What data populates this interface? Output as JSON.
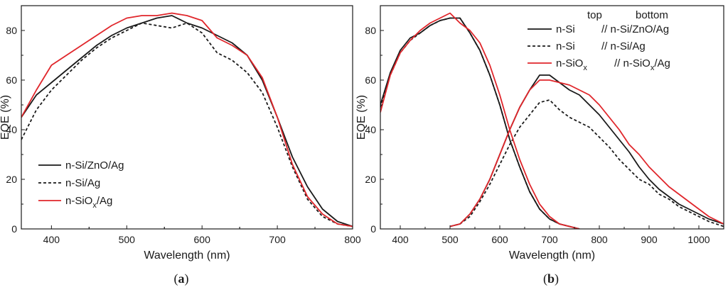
{
  "colors": {
    "black": "#1a1a1a",
    "red": "#e0262b"
  },
  "chart_data": [
    {
      "type": "line",
      "panel": "a",
      "panel_label": {
        "open": "(",
        "letter": "a",
        "close": ")"
      },
      "xlabel": "Wavelength (nm)",
      "ylabel": "EQE (%)",
      "xlim": [
        360,
        800
      ],
      "ylim": [
        0,
        90
      ],
      "xticks": [
        400,
        500,
        600,
        700,
        800
      ],
      "yticks": [
        0,
        20,
        40,
        60,
        80
      ],
      "legend_position": "bottom-left",
      "series": [
        {
          "name": "n-Si/ZnO/Ag",
          "label_base": "n-Si/ZnO/Ag",
          "color": "#1a1a1a",
          "dash": "solid",
          "x": [
            360,
            380,
            400,
            420,
            440,
            460,
            480,
            500,
            520,
            540,
            560,
            580,
            600,
            620,
            640,
            660,
            680,
            700,
            720,
            740,
            760,
            780,
            800
          ],
          "y": [
            45,
            54,
            59,
            64,
            69,
            74,
            78,
            81,
            83,
            85,
            86,
            83,
            81,
            78,
            75,
            70,
            60,
            45,
            29,
            17,
            8,
            3,
            1
          ]
        },
        {
          "name": "n-Si/Ag",
          "label_base": "n-Si/Ag",
          "color": "#1a1a1a",
          "dash": "dashed",
          "x": [
            360,
            380,
            400,
            420,
            440,
            460,
            480,
            500,
            520,
            540,
            560,
            580,
            600,
            620,
            640,
            660,
            680,
            700,
            720,
            740,
            760,
            780,
            800
          ],
          "y": [
            36,
            48,
            56,
            62,
            68,
            73,
            77,
            80,
            83,
            82,
            81,
            83,
            79,
            71,
            68,
            63,
            55,
            41,
            25,
            12,
            5,
            2,
            1
          ]
        },
        {
          "name": "n-SiOx/Ag",
          "label_base": "n-SiO",
          "label_sub": "x",
          "label_tail": "/Ag",
          "color": "#e0262b",
          "dash": "solid",
          "x": [
            360,
            380,
            400,
            420,
            440,
            460,
            480,
            500,
            520,
            540,
            560,
            580,
            600,
            620,
            640,
            660,
            680,
            700,
            720,
            740,
            760,
            780,
            800
          ],
          "y": [
            45,
            56,
            66,
            70,
            74,
            78,
            82,
            85,
            86,
            86,
            87,
            86,
            84,
            77,
            74,
            70,
            61,
            45,
            26,
            13,
            6,
            2,
            1
          ]
        }
      ]
    },
    {
      "type": "line",
      "panel": "b",
      "panel_label": {
        "open": "(",
        "letter": "b",
        "close": ")"
      },
      "xlabel": "Wavelength (nm)",
      "ylabel": "EQE (%)",
      "xlim": [
        360,
        1050
      ],
      "ylim": [
        0,
        90
      ],
      "xticks": [
        400,
        500,
        600,
        700,
        800,
        900,
        1000
      ],
      "yticks": [
        0,
        20,
        40,
        60,
        80
      ],
      "legend_position": "top-right",
      "legend_header": {
        "top": "top",
        "bottom": "bottom"
      },
      "series": [
        {
          "name": "n-Si // n-Si/ZnO/Ag (top)",
          "legend": true,
          "label_top": "n-Si",
          "label_bottom": "// n-Si/ZnO/Ag",
          "color": "#1a1a1a",
          "dash": "solid",
          "x": [
            360,
            380,
            400,
            420,
            440,
            460,
            480,
            500,
            520,
            540,
            560,
            580,
            600,
            620,
            640,
            660,
            680,
            700,
            720,
            740,
            760
          ],
          "y": [
            50,
            63,
            72,
            77,
            79,
            82,
            84,
            85,
            85,
            79,
            72,
            62,
            50,
            36,
            25,
            15,
            8,
            4,
            2,
            1,
            0
          ]
        },
        {
          "name": "n-Si // n-Si/ZnO/Ag (bottom)",
          "legend": false,
          "color": "#1a1a1a",
          "dash": "solid",
          "x": [
            500,
            520,
            540,
            560,
            580,
            600,
            620,
            640,
            660,
            680,
            700,
            720,
            740,
            760,
            780,
            800,
            820,
            840,
            860,
            880,
            900,
            920,
            940,
            960,
            980,
            1000,
            1020,
            1050
          ],
          "y": [
            1,
            2,
            6,
            12,
            20,
            30,
            40,
            49,
            56,
            62,
            62,
            59,
            56,
            54,
            50,
            46,
            41,
            36,
            31,
            25,
            20,
            16,
            13,
            10,
            8,
            6,
            4,
            2
          ]
        },
        {
          "name": "n-Si // n-Si/Ag (top)",
          "legend": true,
          "label_top": "n-Si",
          "label_bottom": "// n-Si/Ag",
          "color": "#1a1a1a",
          "dash": "dashed",
          "x": [
            360,
            380,
            400,
            420,
            440,
            460,
            480,
            500,
            520,
            540,
            560,
            580,
            600,
            620,
            640,
            660,
            680,
            700,
            720,
            740,
            760
          ],
          "y": [
            49,
            62,
            71,
            76,
            79,
            82,
            84,
            85,
            85,
            79,
            72,
            62,
            50,
            36,
            25,
            15,
            8,
            4,
            2,
            1,
            0
          ]
        },
        {
          "name": "n-Si // n-Si/Ag (bottom)",
          "legend": false,
          "color": "#1a1a1a",
          "dash": "dashed",
          "x": [
            500,
            520,
            540,
            560,
            580,
            600,
            620,
            640,
            660,
            680,
            700,
            720,
            740,
            760,
            780,
            800,
            820,
            840,
            860,
            880,
            900,
            920,
            940,
            960,
            980,
            1000,
            1020,
            1050
          ],
          "y": [
            1,
            2,
            5,
            11,
            18,
            26,
            34,
            41,
            46,
            51,
            52,
            48,
            45,
            43,
            41,
            37,
            33,
            28,
            24,
            20,
            18,
            14,
            12,
            9,
            7,
            5,
            3,
            1
          ]
        },
        {
          "name": "n-SiOx // n-SiOx/Ag (top)",
          "legend": true,
          "label_top": "n-SiO",
          "label_top_sub": "x",
          "label_bottom": "// n-SiO",
          "label_bottom_sub": "x",
          "label_bottom_tail": "/Ag",
          "color": "#e0262b",
          "dash": "solid",
          "x": [
            360,
            380,
            400,
            420,
            440,
            460,
            480,
            500,
            520,
            540,
            560,
            580,
            600,
            620,
            640,
            660,
            680,
            700,
            720,
            740,
            760
          ],
          "y": [
            47,
            62,
            71,
            76,
            80,
            83,
            85,
            87,
            83,
            80,
            75,
            66,
            54,
            40,
            28,
            18,
            10,
            5,
            2,
            1,
            0
          ]
        },
        {
          "name": "n-SiOx // n-SiOx/Ag (bottom)",
          "legend": false,
          "color": "#e0262b",
          "dash": "solid",
          "x": [
            500,
            520,
            540,
            560,
            580,
            600,
            620,
            640,
            660,
            680,
            700,
            720,
            740,
            760,
            780,
            800,
            820,
            840,
            860,
            880,
            900,
            920,
            940,
            960,
            980,
            1000,
            1020,
            1050
          ],
          "y": [
            1,
            2,
            6,
            12,
            20,
            30,
            40,
            49,
            56,
            60,
            60,
            59,
            58,
            56,
            54,
            50,
            45,
            40,
            34,
            30,
            25,
            21,
            17,
            14,
            11,
            8,
            5,
            2
          ]
        }
      ]
    }
  ]
}
